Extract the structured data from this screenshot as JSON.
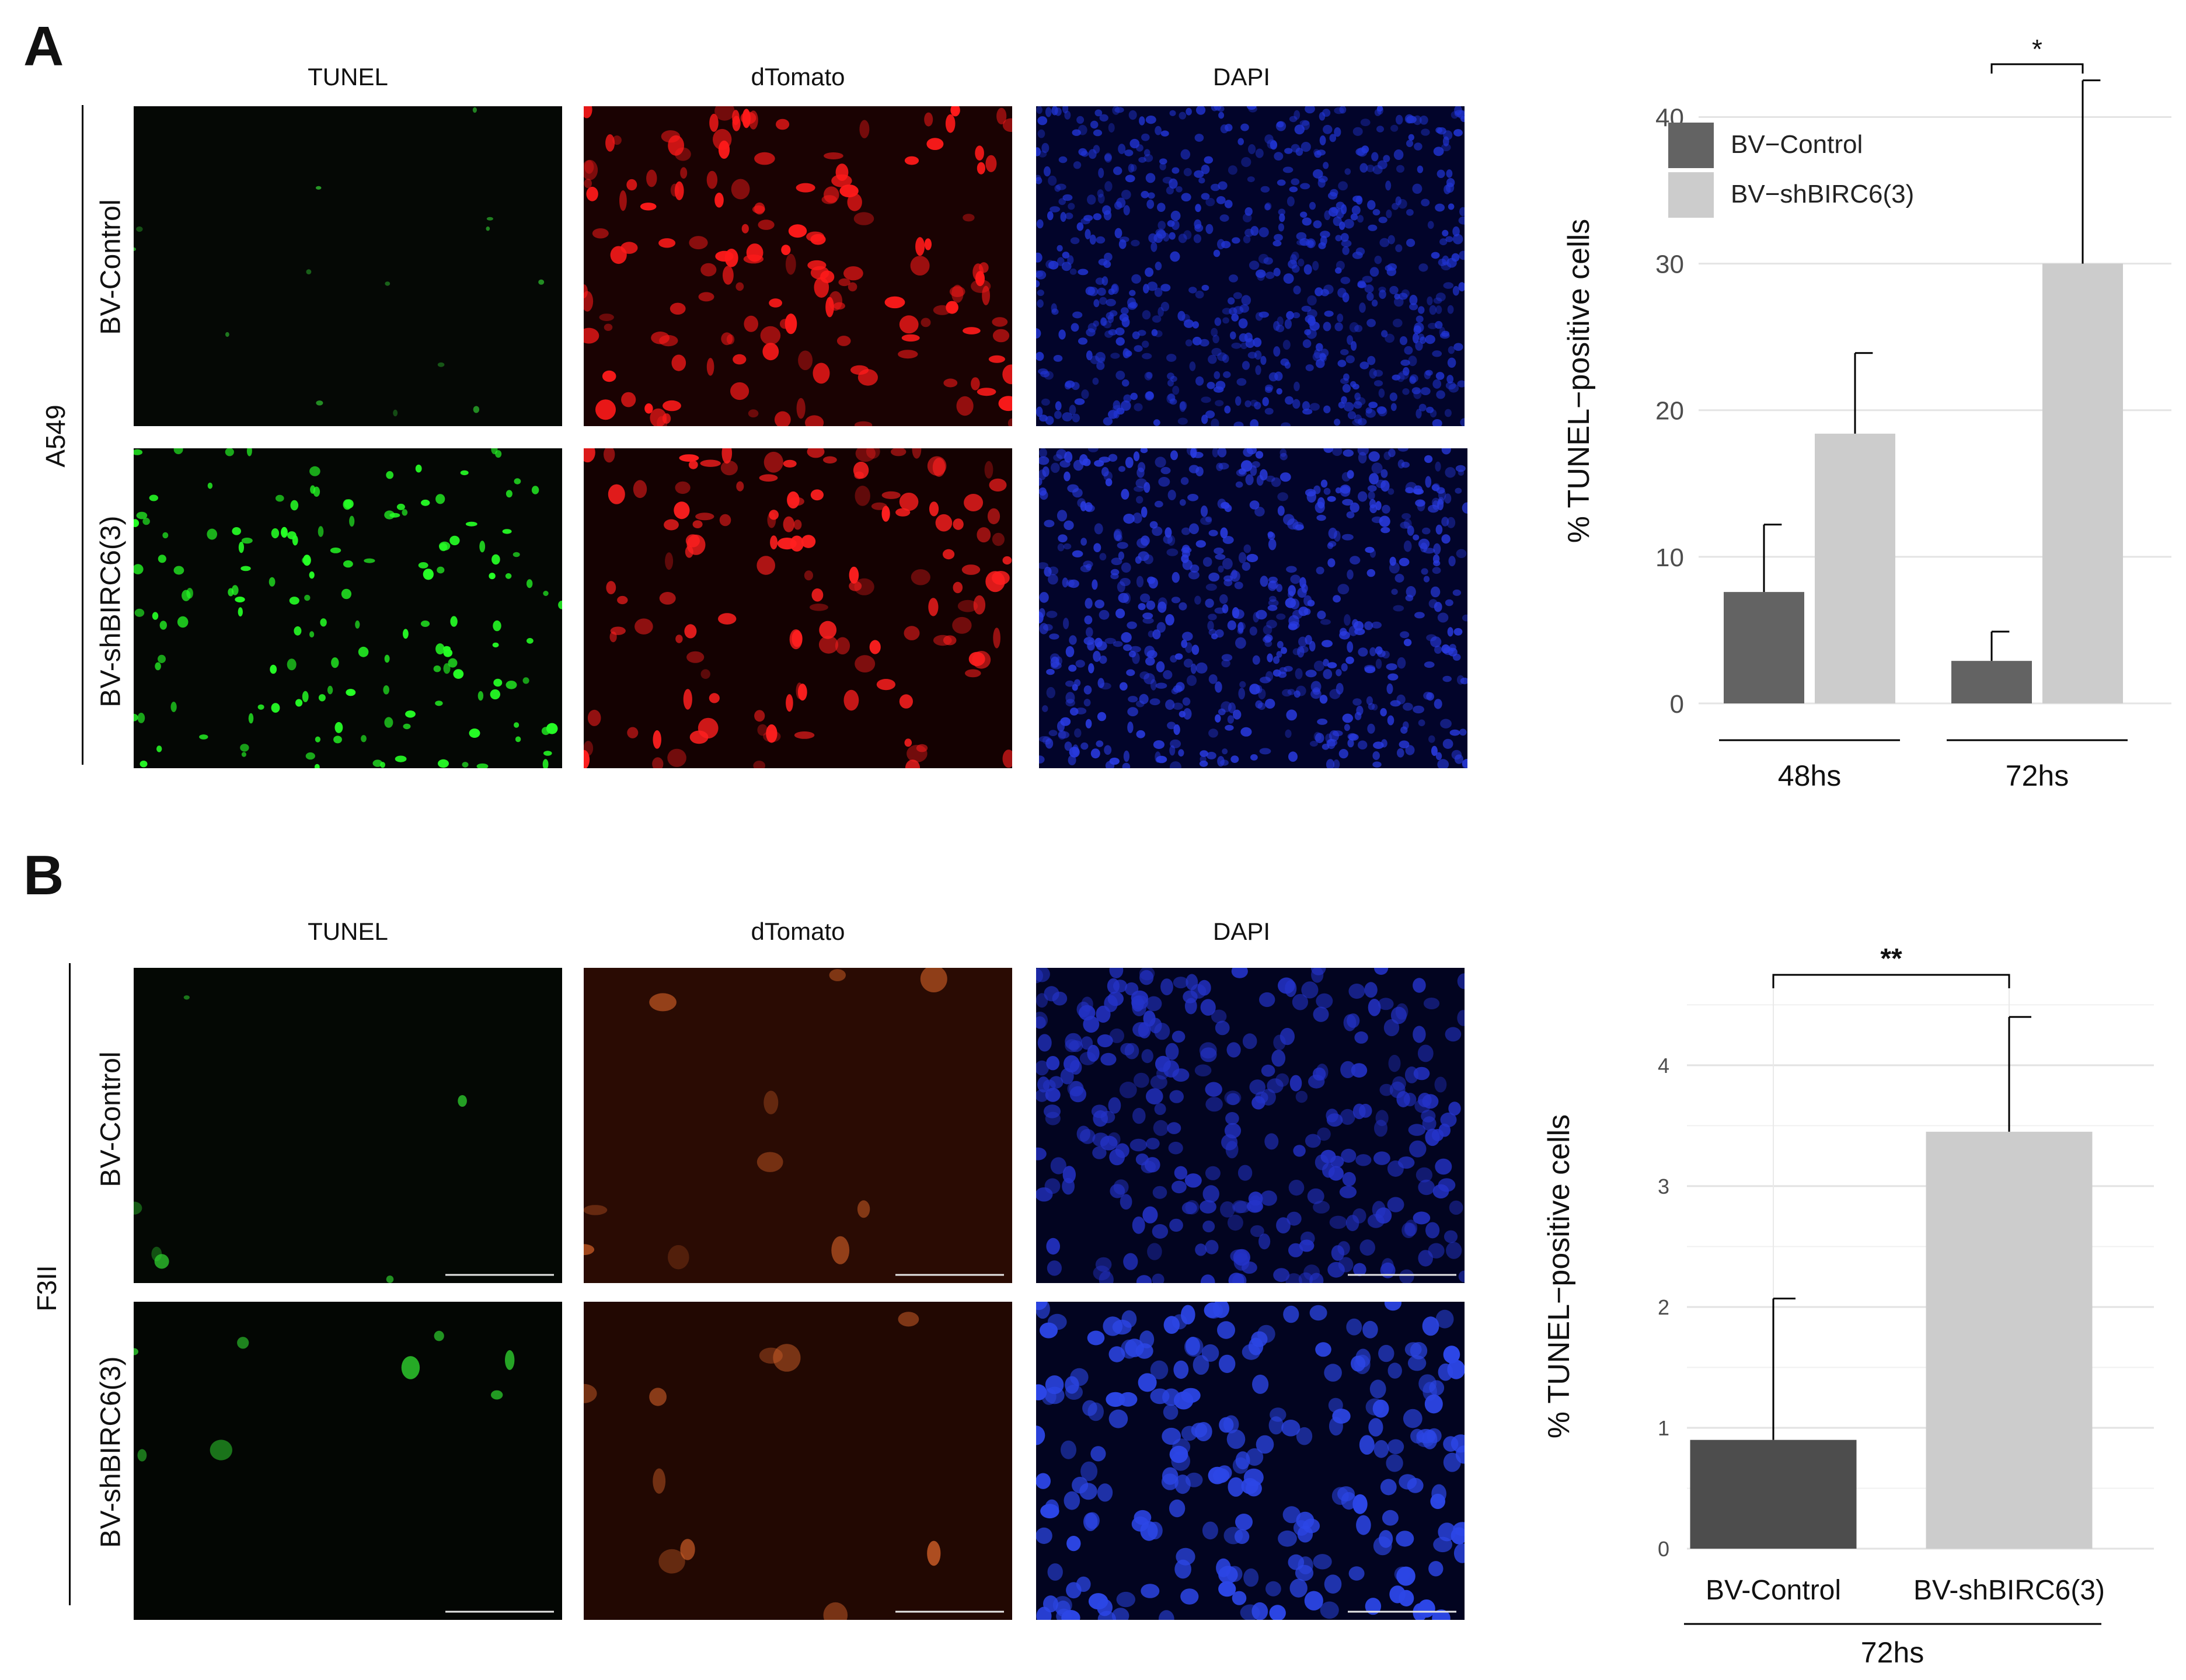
{
  "panelA": {
    "letter": "A",
    "columns": [
      "TUNEL",
      "dTomato",
      "DAPI"
    ],
    "cell_line": "A549",
    "rows": [
      "BV-Control",
      "BV-shBIRC6(3)"
    ],
    "chart_data": {
      "type": "bar",
      "categories": [
        "48hs",
        "72hs"
      ],
      "series": [
        {
          "name": "BV−Control",
          "values": [
            7.6,
            2.9
          ],
          "errors": [
            4.6,
            2.0
          ],
          "color": "#636363"
        },
        {
          "name": "BV−shBIRC6(3)",
          "values": [
            18.4,
            30.0
          ],
          "errors": [
            5.5,
            12.5
          ],
          "color": "#cccccc"
        }
      ],
      "ylabel": "% TUNEL−positive cells",
      "yticks": [
        0,
        10,
        20,
        30,
        40
      ],
      "ylim": [
        0,
        44
      ],
      "significance": [
        {
          "category": "72hs",
          "label": "*"
        }
      ],
      "legend": "top-left",
      "grid": true
    }
  },
  "panelB": {
    "letter": "B",
    "columns": [
      "TUNEL",
      "dTomato",
      "DAPI"
    ],
    "cell_line": "F3II",
    "rows": [
      "BV-Control",
      "BV-shBIRC6(3)"
    ],
    "chart_data": {
      "type": "bar",
      "categories": [
        "BV-Control",
        "BV-shBIRC6(3)"
      ],
      "values": [
        0.9,
        3.45
      ],
      "errors": [
        1.17,
        0.95
      ],
      "colors": [
        "#4d4d4d",
        "#cccccc"
      ],
      "group_label": "72hs",
      "ylabel": "% TUNEL−positive cells",
      "yticks": [
        0,
        1,
        2,
        3,
        4
      ],
      "ylim": [
        0,
        4.7
      ],
      "significance": [
        {
          "between": [
            "BV-Control",
            "BV-shBIRC6(3)"
          ],
          "label": "**"
        }
      ],
      "grid": true
    }
  }
}
